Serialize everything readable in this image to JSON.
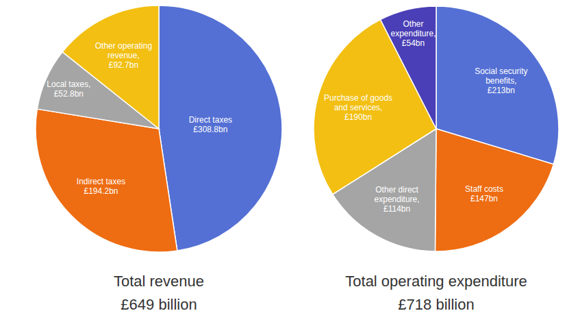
{
  "chart_data": [
    {
      "type": "pie",
      "title": "Total revenue",
      "subtitle": "£649 billion",
      "categories": [
        "Direct taxes",
        "Indirect taxes",
        "Local taxes,",
        "Other operating revenue,"
      ],
      "values": [
        308.8,
        194.2,
        52.8,
        92.7
      ],
      "value_labels": [
        "£308.8bn",
        "£194.2bn",
        "£52.8bn",
        "£92.7bn"
      ],
      "colors": [
        "#5470d4",
        "#ee6c12",
        "#a5a5a5",
        "#f2bf12"
      ],
      "data_labels": true
    },
    {
      "type": "pie",
      "title": "Total operating expenditure",
      "subtitle": "£718 billion",
      "categories": [
        "Social security benefits,",
        "Staff costs",
        "Other direct expenditure,",
        "Purchase of goods and services,",
        "Other expenditure,"
      ],
      "values": [
        213,
        147,
        114,
        190,
        54
      ],
      "value_labels": [
        "£213bn",
        "£147bn",
        "£114bn",
        "£190bn",
        "£54bn"
      ],
      "colors": [
        "#5470d4",
        "#ee6c12",
        "#a5a5a5",
        "#f2bf12",
        "#4a3fb6"
      ],
      "data_labels": true
    }
  ]
}
